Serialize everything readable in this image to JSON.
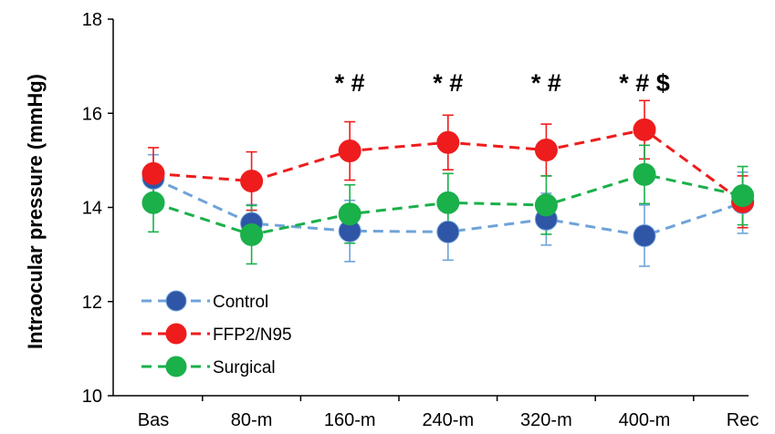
{
  "chart_data": {
    "type": "line",
    "title": "",
    "xlabel": "",
    "ylabel": "Intraocular pressure (mmHg)",
    "ylim": [
      10,
      18
    ],
    "yticks": [
      10,
      12,
      14,
      16,
      18
    ],
    "categories": [
      "Bas",
      "80-m",
      "160-m",
      "240-m",
      "320-m",
      "400-m",
      "Rec"
    ],
    "series": [
      {
        "name": "Control",
        "color": "#2e55a6",
        "line_color": "#6fa3d8",
        "values": [
          14.62,
          13.66,
          13.5,
          13.48,
          13.75,
          13.4,
          14.1
        ],
        "errors": [
          0.5,
          0.4,
          0.65,
          0.6,
          0.55,
          0.65,
          0.65
        ]
      },
      {
        "name": "FFP2/N95",
        "color": "#ee1c1c",
        "line_color": "#ee1c1c",
        "values": [
          14.72,
          14.56,
          15.2,
          15.38,
          15.22,
          15.65,
          14.12
        ],
        "errors": [
          0.55,
          0.62,
          0.62,
          0.58,
          0.55,
          0.62,
          0.55
        ]
      },
      {
        "name": "Surgical",
        "color": "#1ab04a",
        "line_color": "#1ab04a",
        "values": [
          14.1,
          13.42,
          13.86,
          14.1,
          14.05,
          14.7,
          14.25
        ],
        "errors": [
          0.62,
          0.62,
          0.62,
          0.62,
          0.62,
          0.62,
          0.62
        ]
      }
    ],
    "annotations": [
      "",
      "",
      "* #",
      "* #",
      "* #",
      "* # $",
      ""
    ],
    "legend_position": "bottom-left",
    "grid": false
  }
}
